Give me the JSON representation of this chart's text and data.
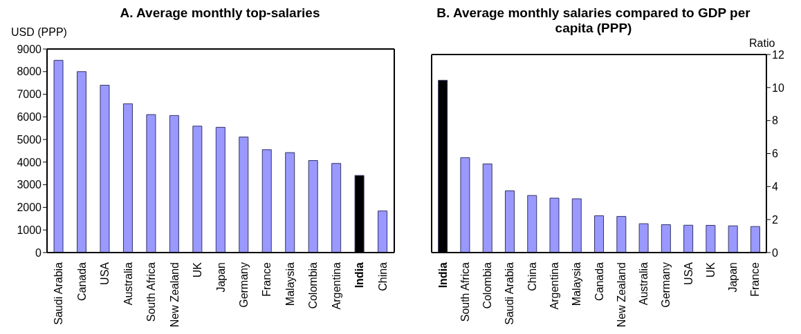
{
  "chart_data": [
    {
      "type": "bar",
      "title": "A. Average monthly top-salaries",
      "ylabel": "USD (PPP)",
      "categories": [
        "Saudi Arabia",
        "Canada",
        "USA",
        "Australia",
        "South Africa",
        "New Zealand",
        "UK",
        "Japan",
        "Germany",
        "France",
        "Malaysia",
        "Colombia",
        "Argentina",
        "India",
        "China"
      ],
      "values": [
        8500,
        8000,
        7400,
        6580,
        6100,
        6060,
        5590,
        5540,
        5110,
        4550,
        4420,
        4070,
        3940,
        3410,
        1840
      ],
      "colors": [
        "#9999ff",
        "#9999ff",
        "#9999ff",
        "#9999ff",
        "#9999ff",
        "#9999ff",
        "#9999ff",
        "#9999ff",
        "#9999ff",
        "#9999ff",
        "#9999ff",
        "#9999ff",
        "#9999ff",
        "#000000",
        "#9999ff"
      ],
      "ylim": [
        0,
        9000
      ],
      "yticks": [
        0,
        1000,
        2000,
        3000,
        4000,
        5000,
        6000,
        7000,
        8000,
        9000
      ],
      "grid": false,
      "legend": false
    },
    {
      "type": "bar",
      "title": "B. Average monthly salaries compared to GDP per capita (PPP)",
      "y2label": "Ratio",
      "categories": [
        "India",
        "South Africa",
        "Colombia",
        "Saudi Arabia",
        "China",
        "Argentina",
        "Malaysia",
        "Canada",
        "New Zealand",
        "Australia",
        "Germany",
        "USA",
        "UK",
        "Japan",
        "France"
      ],
      "series": [
        {
          "axis": "y2",
          "values": [
            10.44,
            5.75,
            5.37,
            3.74,
            3.46,
            3.3,
            3.26,
            2.23,
            2.19,
            1.75,
            1.69,
            1.66,
            1.65,
            1.62,
            1.58
          ],
          "colors": [
            "#000000",
            "#9999ff",
            "#9999ff",
            "#9999ff",
            "#9999ff",
            "#9999ff",
            "#9999ff",
            "#9999ff",
            "#9999ff",
            "#9999ff",
            "#9999ff",
            "#9999ff",
            "#9999ff",
            "#9999ff",
            "#9999ff"
          ]
        }
      ],
      "y2lim": [
        0,
        12
      ],
      "y2ticks": [
        0,
        2,
        4,
        6,
        8,
        10,
        12
      ],
      "grid": false,
      "legend": false
    }
  ]
}
